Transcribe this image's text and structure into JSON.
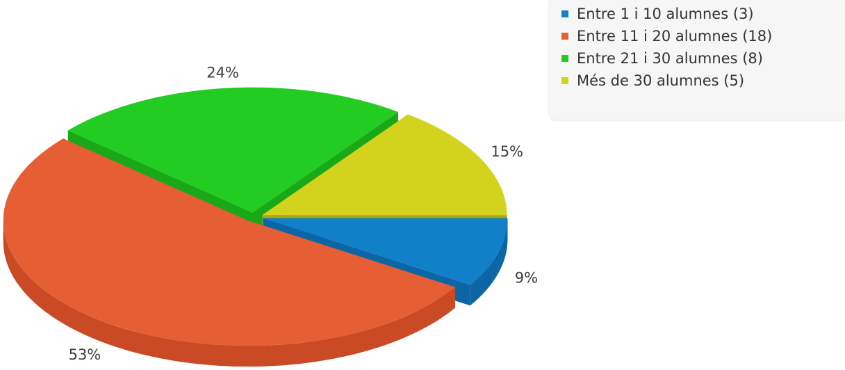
{
  "chart_data": {
    "type": "pie",
    "title": "",
    "legend_position": "top-right",
    "slices": [
      {
        "label": "Entre 1 i 10 alumnes",
        "count": 3,
        "value_pct": 9,
        "pct_label": "9%",
        "legend_label": "Entre 1 i 10 alumnes (3)",
        "color": "#1280c8",
        "side_color": "#0c66a6"
      },
      {
        "label": "Entre 11 i 20 alumnes",
        "count": 18,
        "value_pct": 53,
        "pct_label": "53%",
        "legend_label": "Entre 11 i 20 alumnes (18)",
        "color": "#e55e34",
        "side_color": "#c94a24"
      },
      {
        "label": "Entre 21 i 30 alumnes",
        "count": 8,
        "value_pct": 24,
        "pct_label": "24%",
        "legend_label": "Entre 21 i 30 alumnes (8)",
        "color": "#22cc22",
        "side_color": "#18a818"
      },
      {
        "label": "Més de 30 alumnes",
        "count": 5,
        "value_pct": 15,
        "pct_label": "15%",
        "legend_label": "Més de 30 alumnes (5)",
        "color": "#d3d31d",
        "side_color": "#aaaa14"
      }
    ]
  }
}
